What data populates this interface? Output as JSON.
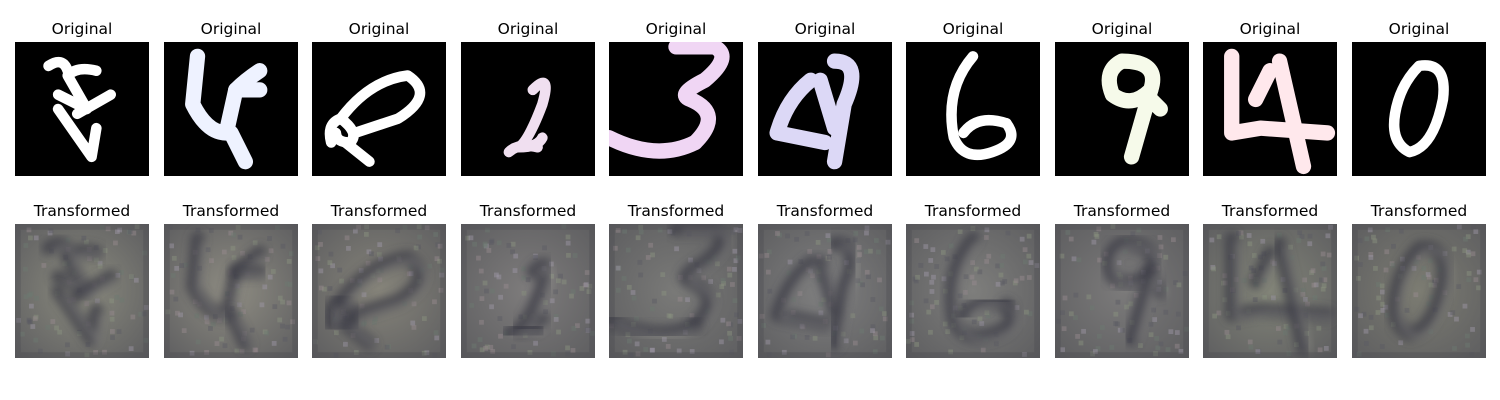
{
  "row_original": {
    "title": "Original"
  },
  "row_transformed": {
    "title": "Transformed"
  },
  "samples": [
    {
      "digit": "4",
      "original_stroke": "#ffffff",
      "transformed_tone": "#8a8a7e"
    },
    {
      "digit": "4",
      "original_stroke": "#eef2ff",
      "transformed_tone": "#8e8c82"
    },
    {
      "digit": "9",
      "original_stroke": "#ffffff",
      "transformed_tone": "#86847a"
    },
    {
      "digit": "2",
      "original_stroke": "#f0dff0",
      "transformed_tone": "#7e7c7c"
    },
    {
      "digit": "3",
      "original_stroke": "#f0d6f4",
      "transformed_tone": "#7a7a78"
    },
    {
      "digit": "4",
      "original_stroke": "#dcd8f6",
      "transformed_tone": "#808080"
    },
    {
      "digit": "6",
      "original_stroke": "#ffffff",
      "transformed_tone": "#7e7e7c"
    },
    {
      "digit": "9",
      "original_stroke": "#f6faea",
      "transformed_tone": "#7b7a7a"
    },
    {
      "digit": "4",
      "original_stroke": "#ffe8ec",
      "transformed_tone": "#828478"
    },
    {
      "digit": "0",
      "original_stroke": "#ffffff",
      "transformed_tone": "#7c7c72"
    }
  ]
}
